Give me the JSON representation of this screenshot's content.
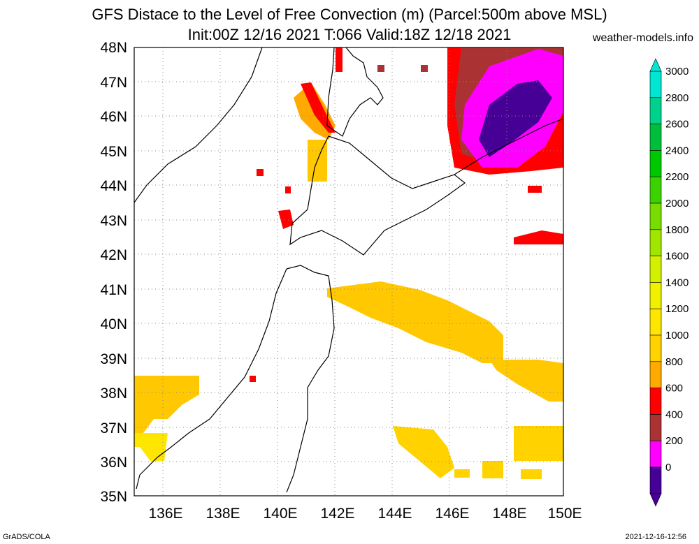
{
  "header": {
    "title_line1": "GFS Distace to the Level of Free Convection (m) (Parcel:500m above MSL)",
    "title_line2": "Init:00Z 12/16 2021 T:066 Valid:18Z 12/18 2021",
    "site": "weather-models.info"
  },
  "axes": {
    "lat_labels": [
      "48N",
      "47N",
      "46N",
      "45N",
      "44N",
      "43N",
      "42N",
      "41N",
      "40N",
      "39N",
      "38N",
      "37N",
      "36N",
      "35N"
    ],
    "lon_labels": [
      "136E",
      "138E",
      "140E",
      "142E",
      "144E",
      "146E",
      "148E",
      "150E"
    ]
  },
  "colorbar": {
    "labels": [
      "3000",
      "2800",
      "2600",
      "2400",
      "2200",
      "2000",
      "1800",
      "1600",
      "1400",
      "1200",
      "1000",
      "800",
      "600",
      "400",
      "200",
      "0"
    ],
    "colors": [
      "#00e6d2",
      "#00d28c",
      "#00be3c",
      "#00c800",
      "#3cd200",
      "#78dc00",
      "#a0e600",
      "#d2f000",
      "#f0f000",
      "#ffe600",
      "#ffd200",
      "#ffaa00",
      "#ff0000",
      "#aa3232",
      "#ff00ff",
      "#460096"
    ]
  },
  "footer": {
    "left": "GrADS/COLA",
    "right": "2021-12-16-12:56"
  }
}
